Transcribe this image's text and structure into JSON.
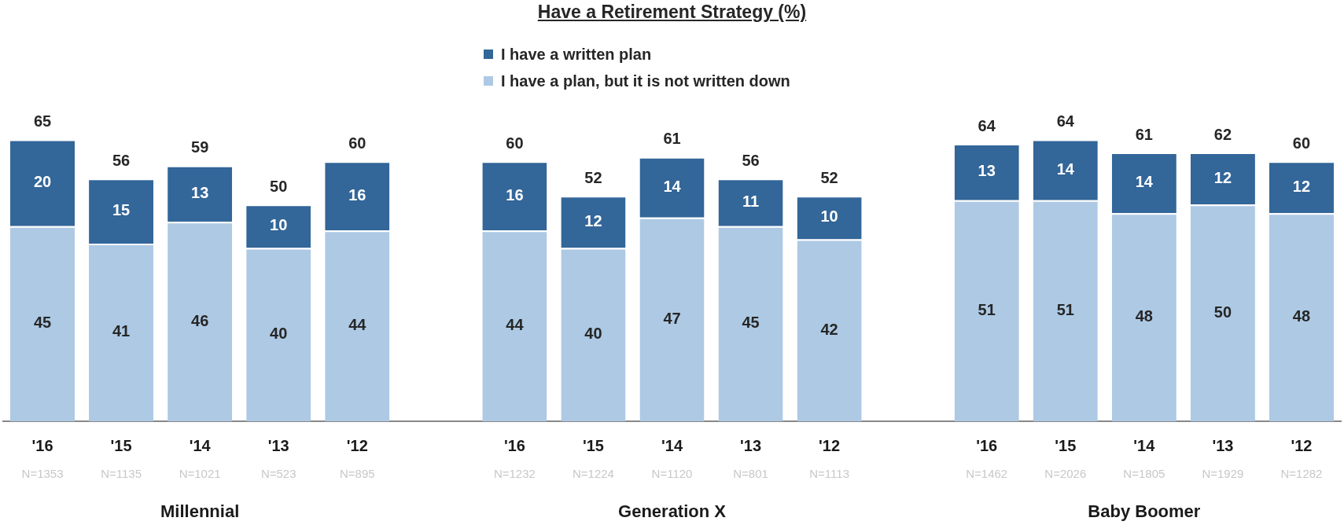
{
  "chart_data": {
    "type": "bar",
    "title": "Have a Retirement Strategy (%)",
    "stacked": true,
    "data_labels": true,
    "legend": "top",
    "grid": false,
    "categories": [
      "'16",
      "'15",
      "'14",
      "'13",
      "'12",
      null,
      "'16",
      "'15",
      "'14",
      "'13",
      "'12",
      null,
      "'16",
      "'15",
      "'14",
      "'13",
      "'12"
    ],
    "series": [
      {
        "name": "I have a plan, but it is not written down",
        "color": "#adc9e4",
        "values": [
          45,
          41,
          46,
          40,
          44,
          null,
          44,
          40,
          47,
          45,
          42,
          null,
          51,
          51,
          48,
          50,
          48
        ]
      },
      {
        "name": "I have a written plan",
        "color": "#336699",
        "values": [
          20,
          15,
          13,
          10,
          16,
          null,
          16,
          12,
          14,
          11,
          10,
          null,
          13,
          14,
          14,
          12,
          12
        ]
      }
    ],
    "totals": [
      "65",
      "56",
      "59",
      "50",
      "60",
      null,
      "60",
      "52",
      "61",
      "56",
      "52",
      null,
      "64",
      "64",
      "61",
      "62",
      "60"
    ],
    "annotations": [
      "N=1353",
      "N=1135",
      "N=1021",
      "N=523",
      "N=895",
      "N=1232",
      "N=1224",
      "N=1120",
      "N=801",
      "N=1113",
      "N=1462",
      "N=2026",
      "N=1805",
      "N=1929",
      "N=1282",
      "Millennial",
      "Generation X",
      "Baby Boomer"
    ]
  }
}
